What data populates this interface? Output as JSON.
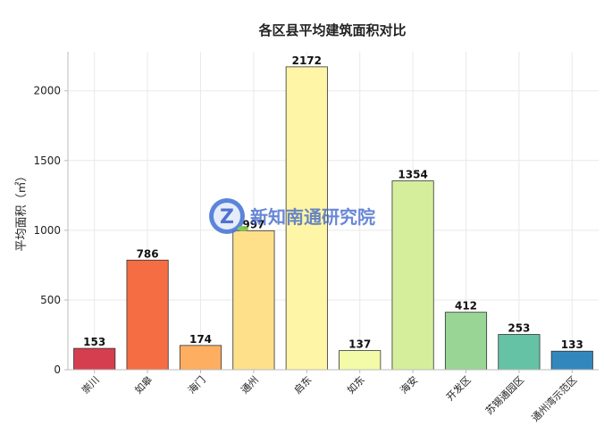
{
  "chart_data": {
    "type": "bar",
    "title": "各区县平均建筑面积对比",
    "ylabel": "平均面积（㎡）",
    "xlabel": "",
    "ylim": [
      0,
      2280
    ],
    "yticks": [
      0,
      500,
      1000,
      1500,
      2000
    ],
    "grid": true,
    "categories": [
      "崇川",
      "如皋",
      "海门",
      "通州",
      "启东",
      "如东",
      "海安",
      "开发区",
      "苏锡通园区",
      "通州湾示范区"
    ],
    "values": [
      153,
      786,
      174,
      997,
      2172,
      137,
      1354,
      412,
      253,
      133
    ],
    "data_labels": [
      "153",
      "786",
      "174",
      "997",
      "2172",
      "137",
      "1354",
      "412",
      "253",
      "133"
    ],
    "colors": [
      "#d53e4f",
      "#f46d43",
      "#fdae61",
      "#fee08b",
      "#fff5a6",
      "#f4fba8",
      "#d5ee9b",
      "#99d594",
      "#66c2a5",
      "#3288bd"
    ]
  },
  "watermark": {
    "icon": "z-logo-icon",
    "letter": "Z",
    "text": "新知南通研究院"
  }
}
